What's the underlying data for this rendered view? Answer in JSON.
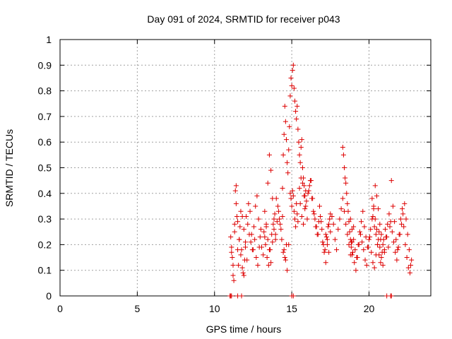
{
  "chart_data": {
    "type": "scatter",
    "title": "Day 091 of 2024, SRMTID for receiver p043",
    "xlabel": "GPS time / hours",
    "ylabel": "SRMTID / TECUs",
    "xlim": [
      0,
      24
    ],
    "ylim": [
      0,
      1
    ],
    "xticks": [
      0,
      5,
      10,
      15,
      20
    ],
    "yticks": [
      0,
      0.1,
      0.2,
      0.3,
      0.4,
      0.5,
      0.6,
      0.7,
      0.8,
      0.9,
      1
    ],
    "ytick_labels": [
      "0",
      "0.1",
      "0.2",
      "0.3",
      "0.4",
      "0.5",
      "0.6",
      "0.7",
      "0.8",
      "0.9",
      "1"
    ],
    "grid": true,
    "marker": "+",
    "series": [
      {
        "name": "SRMTID",
        "color": "#dd0000",
        "x": [
          11.0,
          11.05,
          11.1,
          11.5,
          11.75,
          15.0,
          15.1,
          21.15,
          21.4,
          21.45,
          11.05,
          11.1,
          11.15,
          11.2,
          11.25,
          11.3,
          11.35,
          11.4,
          11.45,
          11.5,
          11.55,
          11.6,
          11.65,
          11.7,
          11.75,
          11.8,
          11.85,
          11.9,
          11.95,
          12.0,
          11.1,
          11.2,
          11.3,
          11.4,
          11.5,
          11.6,
          11.7,
          11.8,
          11.9,
          12.0,
          12.1,
          12.2,
          12.3,
          12.4,
          12.5,
          12.6,
          12.7,
          12.8,
          12.9,
          13.0,
          12.05,
          12.15,
          12.25,
          12.35,
          12.45,
          12.55,
          12.65,
          12.75,
          12.85,
          12.95,
          13.05,
          13.15,
          13.25,
          13.35,
          13.45,
          13.55,
          13.65,
          13.75,
          13.85,
          13.95,
          13.2,
          13.3,
          13.4,
          13.5,
          13.6,
          13.7,
          13.8,
          13.9,
          14.0,
          14.1,
          14.2,
          14.3,
          14.4,
          14.5,
          14.6,
          14.7,
          14.8,
          13.25,
          13.35,
          13.45,
          13.55,
          13.65,
          13.75,
          13.85,
          13.95,
          14.05,
          14.15,
          14.25,
          14.35,
          14.45,
          14.55,
          14.65,
          14.4,
          14.45,
          14.5,
          14.55,
          14.6,
          14.65,
          14.7,
          14.75,
          14.8,
          14.85,
          14.9,
          14.95,
          15.0,
          15.05,
          15.1,
          15.15,
          15.2,
          15.25,
          15.3,
          15.35,
          15.4,
          15.45,
          15.5,
          15.55,
          15.6,
          15.65,
          15.7,
          15.75,
          15.8,
          15.85,
          15.9,
          14.9,
          14.95,
          15.0,
          15.05,
          15.1,
          15.15,
          15.2,
          15.25,
          15.3,
          15.35,
          15.4,
          15.5,
          15.6,
          15.7,
          15.8,
          15.9,
          16.0,
          16.1,
          16.2,
          16.3,
          16.4,
          16.5,
          16.6,
          16.7,
          16.8,
          16.9,
          17.0,
          17.1,
          17.2,
          17.3,
          17.4,
          17.5,
          15.55,
          15.65,
          15.75,
          15.85,
          15.95,
          16.05,
          16.15,
          16.25,
          16.35,
          16.45,
          16.55,
          16.65,
          16.75,
          16.85,
          16.95,
          17.05,
          17.15,
          17.25,
          17.35,
          17.45,
          17.2,
          17.3,
          17.4,
          17.5,
          17.6,
          17.7,
          17.8,
          17.9,
          18.0,
          18.1,
          18.2,
          18.3,
          18.4,
          18.5,
          18.6,
          18.7,
          18.8,
          18.9,
          19.0,
          18.3,
          18.35,
          18.4,
          18.45,
          18.5,
          18.55,
          18.6,
          18.65,
          18.7,
          18.75,
          18.8,
          18.85,
          18.9,
          18.8,
          18.9,
          19.0,
          19.1,
          19.2,
          19.3,
          19.4,
          19.5,
          19.6,
          19.7,
          19.8,
          19.9,
          20.0,
          20.1,
          20.2,
          20.3,
          20.4,
          20.5,
          20.6,
          20.7,
          20.8,
          20.9,
          21.0,
          18.85,
          18.95,
          19.05,
          19.15,
          19.25,
          19.35,
          19.45,
          19.55,
          19.65,
          19.75,
          19.85,
          19.95,
          20.05,
          20.15,
          20.25,
          20.35,
          20.45,
          20.55,
          20.65,
          20.75,
          20.2,
          20.3,
          20.4,
          20.5,
          20.6,
          20.7,
          20.8,
          20.9,
          21.0,
          21.1,
          21.2,
          21.3,
          21.4,
          21.5,
          21.6,
          21.7,
          21.8,
          21.9,
          22.0,
          22.1,
          22.2,
          22.3,
          22.4,
          22.5,
          22.6,
          22.7,
          20.25,
          20.35,
          20.45,
          20.55,
          20.65,
          20.75,
          20.85,
          20.95,
          21.05,
          21.15,
          21.25,
          21.35,
          21.45,
          21.55,
          21.65,
          21.75,
          21.85,
          21.95,
          22.05,
          22.15,
          22.25,
          22.35,
          22.45,
          22.55,
          22.65,
          22.75
        ],
        "y": [
          0.0,
          0.0,
          0.0,
          0.0,
          0.0,
          0.0,
          0.0,
          0.0,
          0.0,
          0.0,
          0.23,
          0.19,
          0.15,
          0.08,
          0.06,
          0.28,
          0.41,
          0.43,
          0.31,
          0.18,
          0.12,
          0.22,
          0.27,
          0.33,
          0.18,
          0.11,
          0.09,
          0.08,
          0.14,
          0.21,
          0.17,
          0.12,
          0.25,
          0.36,
          0.29,
          0.22,
          0.16,
          0.31,
          0.26,
          0.19,
          0.14,
          0.36,
          0.33,
          0.24,
          0.18,
          0.22,
          0.15,
          0.12,
          0.19,
          0.26,
          0.31,
          0.28,
          0.24,
          0.21,
          0.18,
          0.27,
          0.35,
          0.39,
          0.3,
          0.23,
          0.19,
          0.16,
          0.23,
          0.28,
          0.44,
          0.55,
          0.49,
          0.38,
          0.3,
          0.22,
          0.25,
          0.2,
          0.15,
          0.12,
          0.18,
          0.24,
          0.28,
          0.32,
          0.38,
          0.35,
          0.3,
          0.26,
          0.31,
          0.18,
          0.14,
          0.1,
          0.2,
          0.33,
          0.27,
          0.22,
          0.18,
          0.13,
          0.21,
          0.26,
          0.24,
          0.29,
          0.33,
          0.28,
          0.22,
          0.17,
          0.15,
          0.2,
          0.42,
          0.55,
          0.63,
          0.74,
          0.68,
          0.61,
          0.52,
          0.48,
          0.57,
          0.66,
          0.78,
          0.85,
          0.82,
          0.88,
          0.9,
          0.81,
          0.76,
          0.72,
          0.69,
          0.74,
          0.65,
          0.6,
          0.55,
          0.52,
          0.58,
          0.61,
          0.5,
          0.46,
          0.43,
          0.39,
          0.41,
          0.4,
          0.38,
          0.35,
          0.41,
          0.39,
          0.33,
          0.3,
          0.27,
          0.36,
          0.32,
          0.29,
          0.42,
          0.46,
          0.44,
          0.39,
          0.35,
          0.3,
          0.41,
          0.45,
          0.38,
          0.33,
          0.3,
          0.27,
          0.24,
          0.35,
          0.29,
          0.21,
          0.17,
          0.13,
          0.22,
          0.28,
          0.32,
          0.36,
          0.31,
          0.28,
          0.34,
          0.37,
          0.4,
          0.43,
          0.45,
          0.38,
          0.32,
          0.27,
          0.24,
          0.29,
          0.31,
          0.26,
          0.2,
          0.18,
          0.23,
          0.27,
          0.3,
          0.24,
          0.2,
          0.17,
          0.25,
          0.31,
          0.28,
          0.22,
          0.18,
          0.26,
          0.3,
          0.34,
          0.38,
          0.33,
          0.28,
          0.24,
          0.2,
          0.16,
          0.21,
          0.27,
          0.58,
          0.55,
          0.5,
          0.46,
          0.44,
          0.4,
          0.36,
          0.33,
          0.29,
          0.25,
          0.22,
          0.19,
          0.16,
          0.3,
          0.26,
          0.22,
          0.18,
          0.15,
          0.2,
          0.25,
          0.29,
          0.33,
          0.27,
          0.23,
          0.19,
          0.22,
          0.26,
          0.3,
          0.35,
          0.43,
          0.39,
          0.34,
          0.28,
          0.24,
          0.2,
          0.17,
          0.21,
          0.17,
          0.13,
          0.1,
          0.15,
          0.2,
          0.24,
          0.21,
          0.18,
          0.14,
          0.12,
          0.19,
          0.23,
          0.17,
          0.13,
          0.11,
          0.16,
          0.2,
          0.25,
          0.22,
          0.38,
          0.34,
          0.3,
          0.26,
          0.22,
          0.19,
          0.15,
          0.12,
          0.18,
          0.23,
          0.28,
          0.32,
          0.29,
          0.25,
          0.21,
          0.17,
          0.14,
          0.19,
          0.24,
          0.28,
          0.32,
          0.36,
          0.3,
          0.24,
          0.18,
          0.12,
          0.31,
          0.27,
          0.24,
          0.2,
          0.16,
          0.13,
          0.17,
          0.22,
          0.26,
          0.23,
          0.19,
          0.27,
          0.45,
          0.35,
          0.29,
          0.22,
          0.18,
          0.24,
          0.3,
          0.34,
          0.27,
          0.2,
          0.15,
          0.11,
          0.09,
          0.14
        ]
      }
    ]
  }
}
